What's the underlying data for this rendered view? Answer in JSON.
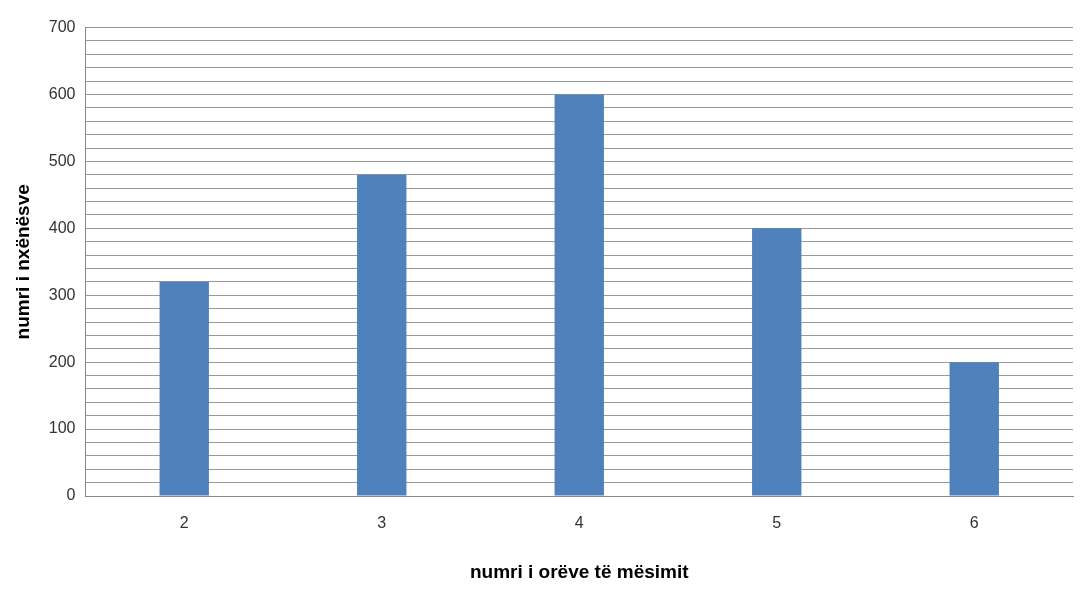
{
  "chart_data": {
    "type": "bar",
    "xlabel": "numri i orëve të mësimit",
    "ylabel": "numri i nxënësve",
    "categories": [
      "2",
      "3",
      "4",
      "5",
      "6"
    ],
    "values": [
      320,
      480,
      600,
      400,
      200
    ],
    "color": "#4f81bd",
    "ylim": [
      0,
      700
    ],
    "yticks": [
      0,
      {
        "value": 20,
        "label": null
      },
      {
        "value": 40,
        "label": null
      },
      {
        "value": 60,
        "label": null
      },
      {
        "value": 80,
        "label": null
      },
      100,
      {
        "value": 120,
        "label": null
      },
      {
        "value": 140,
        "label": null
      },
      {
        "value": 160,
        "label": null
      },
      {
        "value": 180,
        "label": null
      },
      200,
      {
        "value": 220,
        "label": null
      },
      {
        "value": 240,
        "label": null
      },
      {
        "value": 260,
        "label": null
      },
      {
        "value": 280,
        "label": null
      },
      300,
      {
        "value": 320,
        "label": null
      },
      {
        "value": 340,
        "label": null
      },
      {
        "value": 360,
        "label": null
      },
      {
        "value": 380,
        "label": null
      },
      400,
      {
        "value": 420,
        "label": null
      },
      {
        "value": 440,
        "label": null
      },
      {
        "value": 460,
        "label": null
      },
      {
        "value": 480,
        "label": null
      },
      500,
      {
        "value": 520,
        "label": null
      },
      {
        "value": 540,
        "label": null
      },
      {
        "value": 560,
        "label": null
      },
      {
        "value": 580,
        "label": null
      },
      600,
      {
        "value": 620,
        "label": null
      },
      {
        "value": 640,
        "label": null
      },
      {
        "value": 660,
        "label": null
      },
      {
        "value": 680,
        "label": null
      },
      700
    ],
    "grid": "y"
  }
}
